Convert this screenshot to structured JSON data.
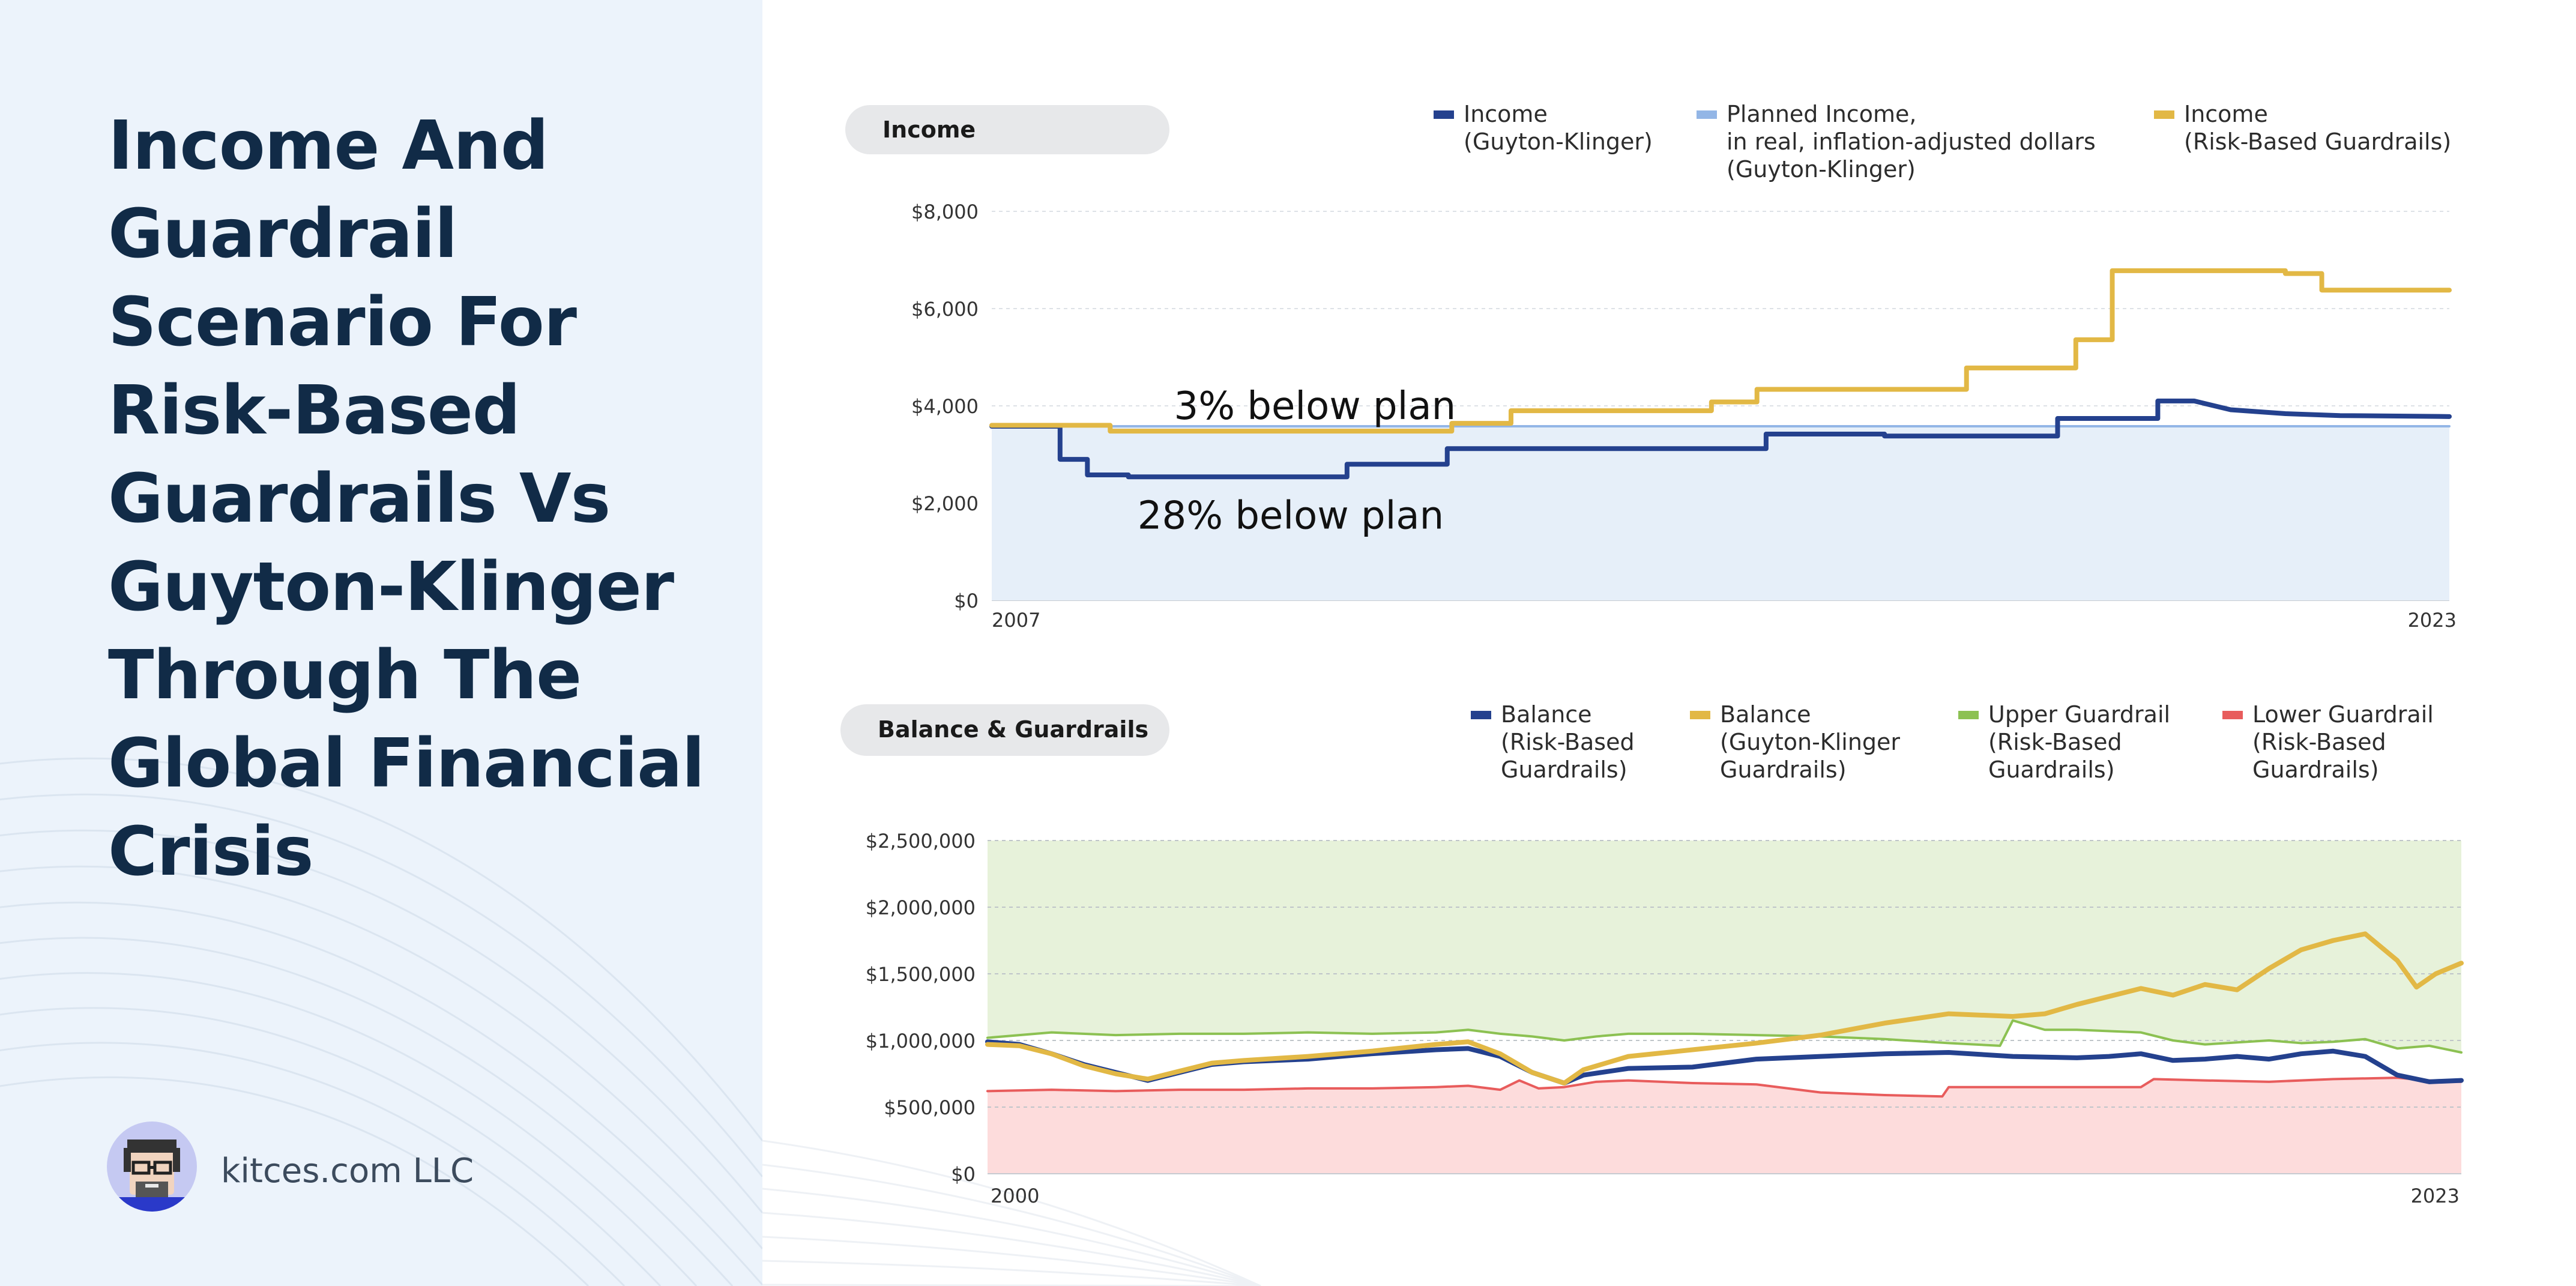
{
  "page": {
    "title": "Income And Guardrail Scenario For Risk-Based Guardrails Vs Guyton-Klinger Through The Global Financial Crisis",
    "brand": "kitces.com LLC"
  },
  "chart_data": [
    {
      "type": "line",
      "title": "Income",
      "x_start_label": "2007",
      "x_end_label": "2023",
      "xlim": [
        2007,
        2023
      ],
      "ylim": [
        0,
        8000
      ],
      "y_ticks": [
        0,
        2000,
        4000,
        6000,
        8000
      ],
      "y_tick_labels": [
        "$0",
        "$2,000",
        "$4,000",
        "$6,000",
        "$8,000"
      ],
      "grid": true,
      "legend_placement": "top-right",
      "annotations": [
        {
          "text": "3% below plan",
          "x": 2009.0,
          "y": 4000
        },
        {
          "text": "28% below plan",
          "x": 2008.6,
          "y": 1750
        }
      ],
      "series": [
        {
          "name": "Income\n(Guyton-Klinger)",
          "color": "#24418e",
          "style": "step",
          "points": [
            [
              2007.0,
              3580
            ],
            [
              2007.75,
              3580
            ],
            [
              2007.75,
              2900
            ],
            [
              2008.05,
              2900
            ],
            [
              2008.05,
              2580
            ],
            [
              2008.5,
              2580
            ],
            [
              2008.5,
              2540
            ],
            [
              2010.9,
              2540
            ],
            [
              2010.9,
              2800
            ],
            [
              2012.0,
              2800
            ],
            [
              2012.0,
              3120
            ],
            [
              2015.5,
              3120
            ],
            [
              2015.5,
              3420
            ],
            [
              2016.8,
              3420
            ],
            [
              2016.8,
              3380
            ],
            [
              2018.7,
              3380
            ],
            [
              2018.7,
              3740
            ],
            [
              2019.8,
              3740
            ],
            [
              2019.8,
              4100
            ],
            [
              2020.2,
              4100
            ],
            [
              2020.6,
              3920
            ],
            [
              2021.2,
              3840
            ],
            [
              2021.8,
              3800
            ],
            [
              2023.0,
              3780
            ]
          ]
        },
        {
          "name": "Planned Income,\nin real, inflation-adjusted dollars\n(Guyton-Klinger)",
          "color": "#93b6e6",
          "fill": "#e6eff9",
          "points": [
            [
              2007.0,
              3580
            ],
            [
              2023.0,
              3580
            ]
          ]
        },
        {
          "name": "Income\n(Risk-Based Guardrails)",
          "color": "#e2b845",
          "style": "step",
          "points": [
            [
              2007.0,
              3600
            ],
            [
              2008.3,
              3600
            ],
            [
              2008.3,
              3480
            ],
            [
              2012.05,
              3480
            ],
            [
              2012.05,
              3640
            ],
            [
              2012.7,
              3640
            ],
            [
              2012.7,
              3900
            ],
            [
              2014.9,
              3900
            ],
            [
              2014.9,
              4080
            ],
            [
              2015.4,
              4080
            ],
            [
              2015.4,
              4340
            ],
            [
              2017.7,
              4340
            ],
            [
              2017.7,
              4780
            ],
            [
              2018.9,
              4780
            ],
            [
              2018.9,
              5360
            ],
            [
              2019.3,
              5360
            ],
            [
              2019.3,
              6780
            ],
            [
              2021.2,
              6780
            ],
            [
              2021.2,
              6720
            ],
            [
              2021.6,
              6720
            ],
            [
              2021.6,
              6380
            ],
            [
              2023.0,
              6380
            ]
          ]
        }
      ]
    },
    {
      "type": "line",
      "title": "Balance & Guardrails",
      "x_start_label": "2000",
      "x_end_label": "2023",
      "xlim": [
        2000,
        2023
      ],
      "ylim": [
        0,
        2500000
      ],
      "y_ticks": [
        0,
        500000,
        1000000,
        1500000,
        2000000,
        2500000
      ],
      "y_tick_labels": [
        "$0",
        "$500,000",
        "$1,000,000",
        "$1,500,000",
        "$2,000,000",
        "$2,500,000"
      ],
      "grid": true,
      "legend_placement": "top-right",
      "series": [
        {
          "name": "Balance\n(Risk-Based\nGuardrails)",
          "color": "#24418e",
          "points": [
            [
              2000.0,
              990000
            ],
            [
              2000.5,
              970000
            ],
            [
              2001.0,
              900000
            ],
            [
              2001.5,
              820000
            ],
            [
              2002.0,
              760000
            ],
            [
              2002.5,
              700000
            ],
            [
              2003.0,
              760000
            ],
            [
              2003.5,
              820000
            ],
            [
              2004.0,
              840000
            ],
            [
              2005.0,
              860000
            ],
            [
              2006.0,
              900000
            ],
            [
              2007.0,
              930000
            ],
            [
              2007.5,
              940000
            ],
            [
              2008.0,
              880000
            ],
            [
              2008.5,
              760000
            ],
            [
              2009.0,
              680000
            ],
            [
              2009.3,
              740000
            ],
            [
              2010.0,
              790000
            ],
            [
              2011.0,
              800000
            ],
            [
              2012.0,
              860000
            ],
            [
              2013.0,
              880000
            ],
            [
              2014.0,
              900000
            ],
            [
              2015.0,
              910000
            ],
            [
              2016.0,
              880000
            ],
            [
              2017.0,
              870000
            ],
            [
              2017.5,
              880000
            ],
            [
              2018.0,
              900000
            ],
            [
              2018.5,
              850000
            ],
            [
              2019.0,
              860000
            ],
            [
              2019.5,
              880000
            ],
            [
              2020.0,
              860000
            ],
            [
              2020.5,
              900000
            ],
            [
              2021.0,
              920000
            ],
            [
              2021.5,
              880000
            ],
            [
              2022.0,
              740000
            ],
            [
              2022.5,
              690000
            ],
            [
              2023.0,
              700000
            ]
          ]
        },
        {
          "name": "Balance\n(Guyton-Klinger\nGuardrails)",
          "color": "#e2b845",
          "points": [
            [
              2000.0,
              970000
            ],
            [
              2000.5,
              960000
            ],
            [
              2001.0,
              900000
            ],
            [
              2001.5,
              810000
            ],
            [
              2002.0,
              750000
            ],
            [
              2002.5,
              710000
            ],
            [
              2003.0,
              770000
            ],
            [
              2003.5,
              830000
            ],
            [
              2004.0,
              850000
            ],
            [
              2005.0,
              880000
            ],
            [
              2006.0,
              920000
            ],
            [
              2007.0,
              970000
            ],
            [
              2007.5,
              990000
            ],
            [
              2008.0,
              900000
            ],
            [
              2008.5,
              760000
            ],
            [
              2009.0,
              680000
            ],
            [
              2009.3,
              780000
            ],
            [
              2010.0,
              880000
            ],
            [
              2011.0,
              930000
            ],
            [
              2012.0,
              980000
            ],
            [
              2013.0,
              1040000
            ],
            [
              2014.0,
              1130000
            ],
            [
              2015.0,
              1200000
            ],
            [
              2016.0,
              1180000
            ],
            [
              2016.5,
              1200000
            ],
            [
              2017.0,
              1270000
            ],
            [
              2018.0,
              1390000
            ],
            [
              2018.5,
              1340000
            ],
            [
              2019.0,
              1420000
            ],
            [
              2019.5,
              1380000
            ],
            [
              2020.0,
              1540000
            ],
            [
              2020.5,
              1680000
            ],
            [
              2021.0,
              1750000
            ],
            [
              2021.5,
              1800000
            ],
            [
              2022.0,
              1600000
            ],
            [
              2022.3,
              1400000
            ],
            [
              2022.6,
              1500000
            ],
            [
              2023.0,
              1580000
            ]
          ]
        },
        {
          "name": "Upper Guardrail\n(Risk-Based\nGuardrails)",
          "color": "#8cc152",
          "fill": "#e7f2da",
          "points": [
            [
              2000.0,
              1020000
            ],
            [
              2001.0,
              1060000
            ],
            [
              2002.0,
              1040000
            ],
            [
              2003.0,
              1050000
            ],
            [
              2004.0,
              1050000
            ],
            [
              2005.0,
              1060000
            ],
            [
              2006.0,
              1050000
            ],
            [
              2007.0,
              1060000
            ],
            [
              2007.5,
              1080000
            ],
            [
              2008.0,
              1050000
            ],
            [
              2008.5,
              1030000
            ],
            [
              2009.0,
              1000000
            ],
            [
              2009.5,
              1030000
            ],
            [
              2010.0,
              1050000
            ],
            [
              2011.0,
              1050000
            ],
            [
              2012.0,
              1040000
            ],
            [
              2013.0,
              1030000
            ],
            [
              2014.0,
              1010000
            ],
            [
              2015.0,
              980000
            ],
            [
              2015.8,
              960000
            ],
            [
              2016.0,
              1150000
            ],
            [
              2016.5,
              1080000
            ],
            [
              2017.0,
              1080000
            ],
            [
              2018.0,
              1060000
            ],
            [
              2018.5,
              1000000
            ],
            [
              2019.0,
              970000
            ],
            [
              2020.0,
              1000000
            ],
            [
              2020.5,
              980000
            ],
            [
              2021.0,
              990000
            ],
            [
              2021.5,
              1010000
            ],
            [
              2022.0,
              940000
            ],
            [
              2022.5,
              960000
            ],
            [
              2023.0,
              910000
            ]
          ]
        },
        {
          "name": "Lower Guardrail\n(Risk-Based\nGuardrails)",
          "color": "#e85c5c",
          "fill": "#fddcdc",
          "points": [
            [
              2000.0,
              620000
            ],
            [
              2001.0,
              630000
            ],
            [
              2002.0,
              620000
            ],
            [
              2003.0,
              630000
            ],
            [
              2004.0,
              630000
            ],
            [
              2005.0,
              640000
            ],
            [
              2006.0,
              640000
            ],
            [
              2007.0,
              650000
            ],
            [
              2007.5,
              660000
            ],
            [
              2008.0,
              630000
            ],
            [
              2008.3,
              700000
            ],
            [
              2008.6,
              640000
            ],
            [
              2009.0,
              650000
            ],
            [
              2009.5,
              690000
            ],
            [
              2010.0,
              700000
            ],
            [
              2011.0,
              680000
            ],
            [
              2012.0,
              670000
            ],
            [
              2013.0,
              610000
            ],
            [
              2014.0,
              590000
            ],
            [
              2014.9,
              580000
            ],
            [
              2015.0,
              650000
            ],
            [
              2016.0,
              650000
            ],
            [
              2017.0,
              650000
            ],
            [
              2018.0,
              650000
            ],
            [
              2018.2,
              710000
            ],
            [
              2019.0,
              700000
            ],
            [
              2020.0,
              690000
            ],
            [
              2021.0,
              710000
            ],
            [
              2022.0,
              720000
            ],
            [
              2022.5,
              700000
            ],
            [
              2023.0,
              690000
            ]
          ]
        }
      ]
    }
  ]
}
